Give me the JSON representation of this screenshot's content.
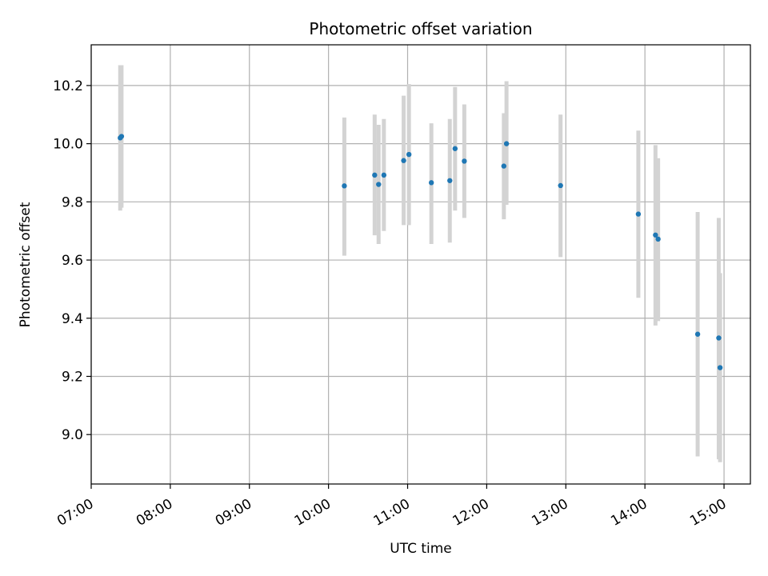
{
  "chart_data": {
    "type": "scatter",
    "title": "Photometric offset variation",
    "xlabel": "UTC time",
    "ylabel": "Photometric offset",
    "xlim": [
      "07:00",
      "15:20"
    ],
    "ylim": [
      8.83,
      10.34
    ],
    "x_ticks": [
      "07:00",
      "08:00",
      "09:00",
      "10:00",
      "11:00",
      "12:00",
      "13:00",
      "14:00",
      "15:00"
    ],
    "y_ticks": [
      9.0,
      9.2,
      9.4,
      9.6,
      9.8,
      10.0,
      10.2
    ],
    "y_tick_labels": [
      "9.0",
      "9.2",
      "9.4",
      "9.6",
      "9.8",
      "10.0",
      "10.2"
    ],
    "grid": true,
    "point_color": "#1f77b4",
    "errorbar_color": "#d3d3d3",
    "points": [
      {
        "t": "07:22",
        "y": 10.02,
        "lo": 9.77,
        "hi": 10.27
      },
      {
        "t": "07:23",
        "y": 10.025,
        "lo": 9.78,
        "hi": 10.27
      },
      {
        "t": "10:12",
        "y": 9.855,
        "lo": 9.615,
        "hi": 10.09
      },
      {
        "t": "10:35",
        "y": 9.892,
        "lo": 9.685,
        "hi": 10.1
      },
      {
        "t": "10:38",
        "y": 9.86,
        "lo": 9.655,
        "hi": 10.065
      },
      {
        "t": "10:42",
        "y": 9.892,
        "lo": 9.7,
        "hi": 10.085
      },
      {
        "t": "10:57",
        "y": 9.942,
        "lo": 9.72,
        "hi": 10.165
      },
      {
        "t": "11:01",
        "y": 9.963,
        "lo": 9.72,
        "hi": 10.205
      },
      {
        "t": "11:18",
        "y": 9.866,
        "lo": 9.655,
        "hi": 10.07
      },
      {
        "t": "11:32",
        "y": 9.873,
        "lo": 9.66,
        "hi": 10.085
      },
      {
        "t": "11:36",
        "y": 9.983,
        "lo": 9.77,
        "hi": 10.195
      },
      {
        "t": "11:43",
        "y": 9.94,
        "lo": 9.745,
        "hi": 10.135
      },
      {
        "t": "12:13",
        "y": 9.923,
        "lo": 9.74,
        "hi": 10.105
      },
      {
        "t": "12:15",
        "y": 10.0,
        "lo": 9.79,
        "hi": 10.215
      },
      {
        "t": "12:56",
        "y": 9.856,
        "lo": 9.61,
        "hi": 10.1
      },
      {
        "t": "13:55",
        "y": 9.758,
        "lo": 9.47,
        "hi": 10.045
      },
      {
        "t": "14:08",
        "y": 9.686,
        "lo": 9.375,
        "hi": 9.995
      },
      {
        "t": "14:10",
        "y": 9.672,
        "lo": 9.39,
        "hi": 9.95
      },
      {
        "t": "14:40",
        "y": 9.345,
        "lo": 8.925,
        "hi": 9.765
      },
      {
        "t": "14:56",
        "y": 9.332,
        "lo": 8.915,
        "hi": 9.745
      },
      {
        "t": "14:57",
        "y": 9.23,
        "lo": 8.905,
        "hi": 9.555
      }
    ]
  }
}
